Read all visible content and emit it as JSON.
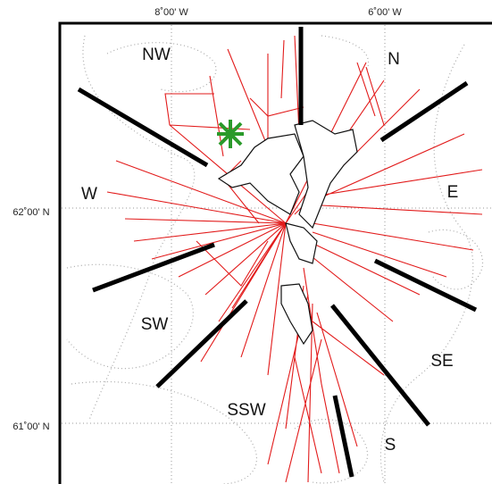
{
  "axes": {
    "top": [
      "8˚00' W",
      "6˚00' W"
    ],
    "left": [
      "62˚00' N",
      "61˚00' N"
    ]
  },
  "sectors": [
    "NW",
    "N",
    "W",
    "E",
    "SW",
    "SE",
    "SSW",
    "S"
  ]
}
